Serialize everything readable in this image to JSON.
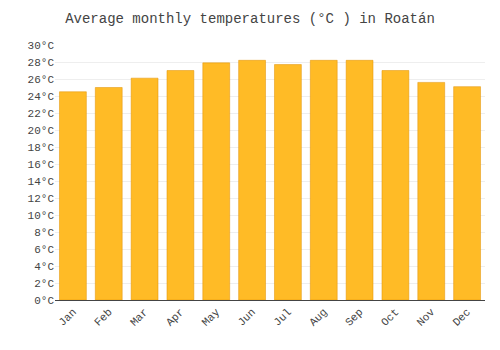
{
  "chart_data": {
    "type": "bar",
    "title": "Average monthly temperatures (°C ) in Roatán",
    "categories": [
      "Jan",
      "Feb",
      "Mar",
      "Apr",
      "May",
      "Jun",
      "Jul",
      "Aug",
      "Sep",
      "Oct",
      "Nov",
      "Dec"
    ],
    "values": [
      24.5,
      25.0,
      26.1,
      27.0,
      27.9,
      28.2,
      27.7,
      28.2,
      28.2,
      27.0,
      25.6,
      25.1
    ],
    "color": "#FFBB26",
    "ylim": [
      0,
      30
    ],
    "yticks": [
      {
        "value": 0,
        "label": "0°C"
      },
      {
        "value": 2,
        "label": "2°C"
      },
      {
        "value": 4,
        "label": "4°C"
      },
      {
        "value": 6,
        "label": "6°C"
      },
      {
        "value": 8,
        "label": "8°C"
      },
      {
        "value": 10,
        "label": "10°C"
      },
      {
        "value": 12,
        "label": "12°C"
      },
      {
        "value": 14,
        "label": "14°C"
      },
      {
        "value": 16,
        "label": "16°C"
      },
      {
        "value": 18,
        "label": "18°C"
      },
      {
        "value": 20,
        "label": "20°C"
      },
      {
        "value": 22,
        "label": "22°C"
      },
      {
        "value": 24,
        "label": "24°C"
      },
      {
        "value": 26,
        "label": "26°C"
      },
      {
        "value": 28,
        "label": "28°C"
      },
      {
        "value": 30,
        "label": "30°C"
      }
    ],
    "grid": true
  }
}
